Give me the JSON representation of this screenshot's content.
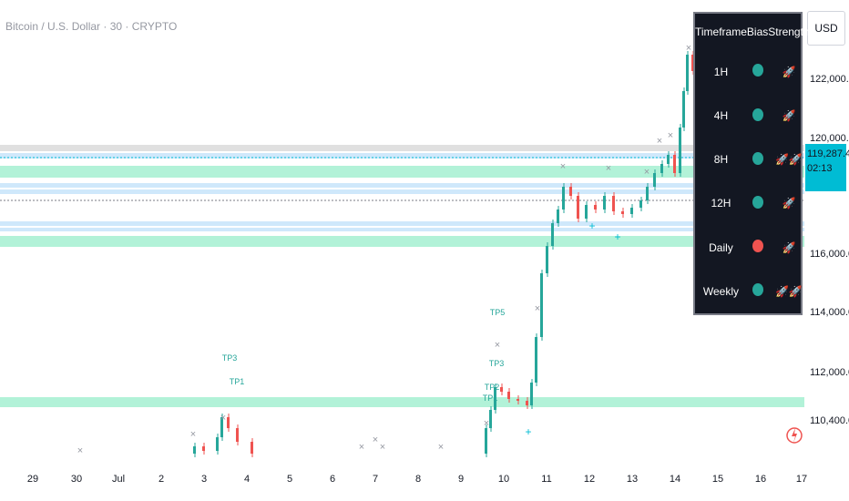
{
  "header": {
    "symbol_title": "Bitcoin / U.S. Dollar · 30 · CRYPTO",
    "currency": "USD"
  },
  "price_axis": {
    "ticks": [
      "122,000.00",
      "120,000.00",
      "116,000.00",
      "114,000.00",
      "112,000.00",
      "110,400.00"
    ],
    "current_price": "119,287.44",
    "countdown": "02:13"
  },
  "time_axis": {
    "ticks": [
      "29",
      "30",
      "Jul",
      "2",
      "3",
      "4",
      "5",
      "6",
      "7",
      "8",
      "9",
      "10",
      "11",
      "12",
      "13",
      "14",
      "15",
      "16",
      "17"
    ]
  },
  "bias_table": {
    "headers": [
      "Timeframe",
      "Bias",
      "Strength"
    ],
    "rows": [
      {
        "timeframe": "1H",
        "bias": "bullish",
        "strength": "1 rocket"
      },
      {
        "timeframe": "4H",
        "bias": "bullish",
        "strength": "1 rocket"
      },
      {
        "timeframe": "8H",
        "bias": "bullish",
        "strength": "2 rockets"
      },
      {
        "timeframe": "12H",
        "bias": "bullish",
        "strength": "1 rocket"
      },
      {
        "timeframe": "Daily",
        "bias": "bearish",
        "strength": "1 rocket"
      },
      {
        "timeframe": "Weekly",
        "bias": "bullish",
        "strength": "2 rockets"
      }
    ]
  },
  "annotations": [
    "TP3",
    "TP1",
    "TP5",
    "TP3",
    "TP2",
    "TP1"
  ],
  "colors": {
    "bull": "#26a69a",
    "bear": "#ef5350",
    "accent": "#00bcd4",
    "zone_green": "#b2f2d8",
    "zone_blue": "#cfe8fb"
  },
  "icons": [
    "rocket-icon",
    "circle-icon",
    "logo-icon"
  ]
}
